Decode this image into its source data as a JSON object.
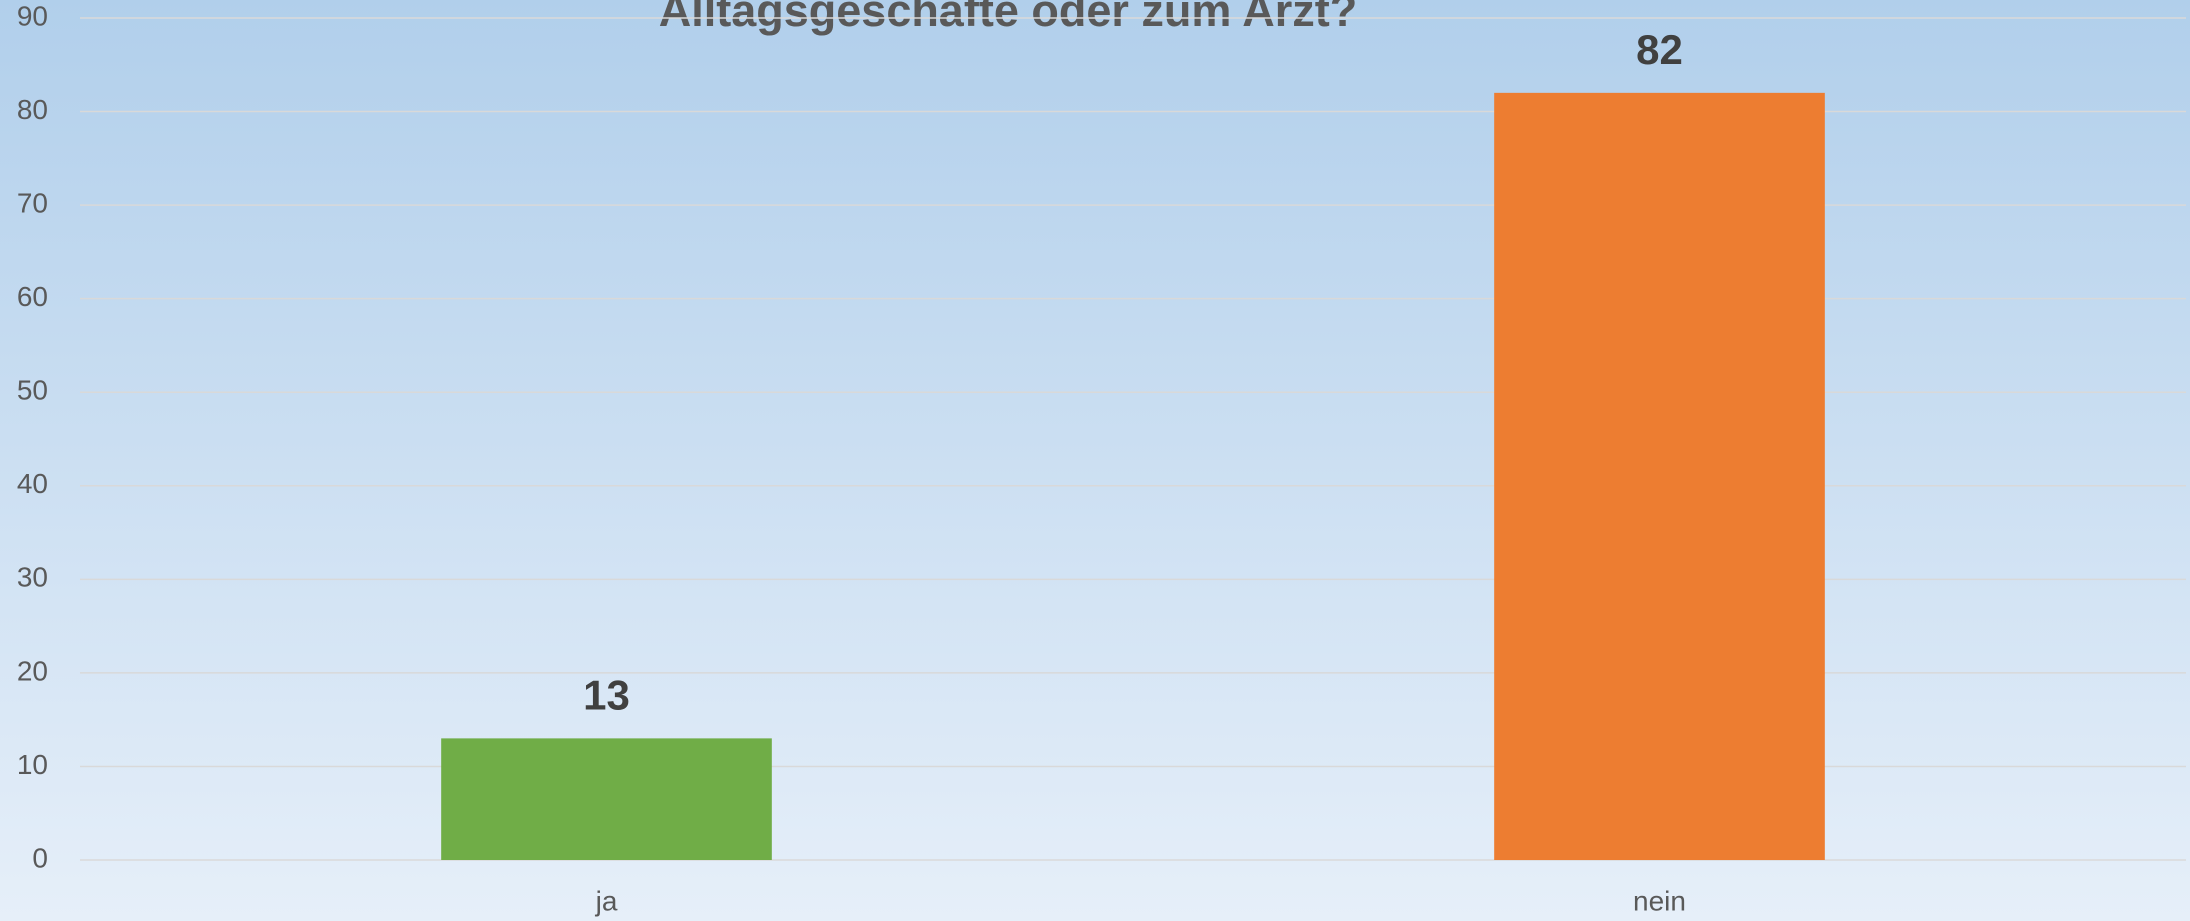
{
  "chart_data": {
    "type": "bar",
    "title": "Alltagsgeschäfte oder zum Arzt?",
    "categories": [
      "ja",
      "nein"
    ],
    "values": [
      13,
      82
    ],
    "colors": [
      "#70ad47",
      "#ed7d31"
    ],
    "ylim": [
      0,
      90
    ],
    "yticks": [
      0,
      10,
      20,
      30,
      40,
      50,
      60,
      70,
      80,
      90
    ],
    "grid": true
  }
}
